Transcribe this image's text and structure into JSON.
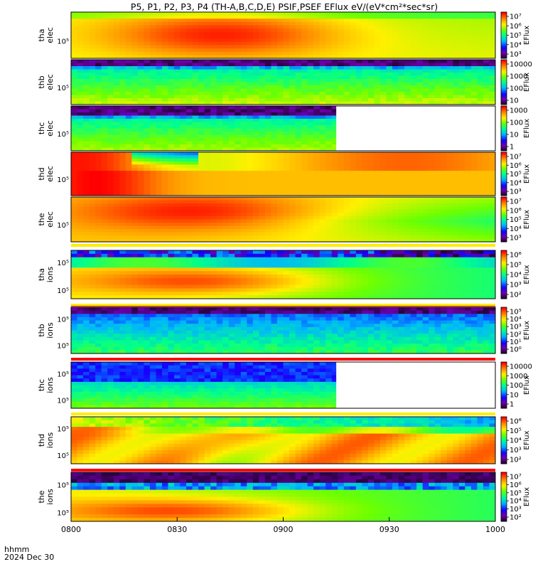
{
  "title": "P5, P1, P2, P3, P4 (TH-A,B,C,D,E) PSIF,PSEF EFlux eV/(eV*cm²*sec*sr)",
  "footer": {
    "line1": "hhmm",
    "line2": "2024 Dec 30"
  },
  "chart_data": {
    "type": "heatmap",
    "x_axis": {
      "range": [
        "0800",
        "1000"
      ],
      "ticks": [
        "0800",
        "0830",
        "0900",
        "0930",
        "1000"
      ]
    },
    "panels": [
      {
        "label1": "tha",
        "label2": "elec",
        "ytick": "10⁵",
        "cbar_label": "EFlux",
        "cbar_ticks": [
          "10⁷",
          "10⁶",
          "10⁵",
          "10⁴",
          "10³"
        ],
        "bar_color": ""
      },
      {
        "label1": "thb",
        "label2": "elec",
        "ytick": "10⁵",
        "cbar_label": "EFlux",
        "cbar_ticks": [
          "10000",
          "1000",
          "100",
          "10"
        ],
        "bar_color": ""
      },
      {
        "label1": "thc",
        "label2": "elec",
        "ytick": "10⁵",
        "cbar_label": "EFlux",
        "cbar_ticks": [
          "1000",
          "100",
          "10",
          "1"
        ],
        "data_end": "0915",
        "bar_color": ""
      },
      {
        "label1": "thd",
        "label2": "elec",
        "ytick": "10⁵",
        "cbar_label": "EFlux",
        "cbar_ticks": [
          "10⁷",
          "10⁶",
          "10⁵",
          "10⁴",
          "10³"
        ],
        "bar_color": ""
      },
      {
        "label1": "the",
        "label2": "elec",
        "ytick": "10⁵",
        "cbar_label": "EFlux",
        "cbar_ticks": [
          "10⁷",
          "10⁶",
          "10⁵",
          "10⁴",
          "10³"
        ],
        "bar_color": "#ffee00"
      },
      {
        "label1": "tha",
        "label2": "ions",
        "ytick": "10⁵",
        "ytick2": "10⁵",
        "cbar_label": "EFlux",
        "cbar_ticks": [
          "10⁶",
          "10⁵",
          "10⁴",
          "10³",
          "10²"
        ],
        "bar_color": "#ff0000"
      },
      {
        "label1": "thb",
        "label2": "ions",
        "ytick": "10⁵",
        "ytick2": "10⁵",
        "cbar_label": "EFlux",
        "cbar_ticks": [
          "10⁵",
          "10⁴",
          "10³",
          "10²",
          "10¹",
          "10⁰"
        ],
        "bar_color": "#ff0000"
      },
      {
        "label1": "thc",
        "label2": "ions",
        "ytick": "10⁵",
        "ytick2": "10⁵",
        "cbar_label": "EFlux",
        "cbar_ticks": [
          "10000",
          "1000",
          "100",
          "10",
          "1"
        ],
        "data_end": "0915",
        "bar_color": "#ffee00"
      },
      {
        "label1": "thd",
        "label2": "ions",
        "ytick": "10⁵",
        "ytick2": "10⁵",
        "cbar_label": "EFlux",
        "cbar_ticks": [
          "10⁶",
          "10⁵",
          "10⁴",
          "10³",
          "10²"
        ],
        "bar_color": "#ff0000"
      },
      {
        "label1": "the",
        "label2": "ions",
        "ytick": "10⁵",
        "ytick2": "10⁵",
        "cbar_label": "EFlux",
        "cbar_ticks": [
          "10⁷",
          "10⁶",
          "10⁵",
          "10⁴",
          "10³",
          "10²"
        ],
        "bar_color": ""
      }
    ]
  }
}
